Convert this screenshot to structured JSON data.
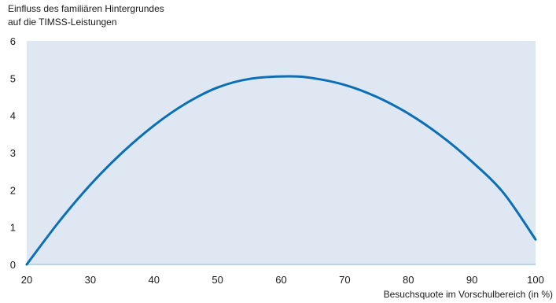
{
  "chart_data": {
    "type": "line",
    "ylabel": [
      "Einfluss des familiären Hintergrundes",
      "auf die TIMSS-Leistungen"
    ],
    "xlabel": "Besuchsquote im Vorschulbereich (in %)",
    "xlim": [
      20,
      100
    ],
    "ylim": [
      0,
      6
    ],
    "x_ticks": [
      "20",
      "30",
      "40",
      "50",
      "60",
      "70",
      "80",
      "90",
      "100"
    ],
    "y_ticks": [
      "0",
      "1",
      "2",
      "3",
      "4",
      "5",
      "6"
    ],
    "grid": false,
    "colors": {
      "line": "#0a6fb4",
      "plot_background": "#dfe7f3",
      "axis": "#7fb0d6"
    },
    "series": [
      {
        "values": [
          {
            "x": 20,
            "y": 0.0
          },
          {
            "x": 25,
            "y": 1.13
          },
          {
            "x": 30,
            "y": 2.14
          },
          {
            "x": 35,
            "y": 3.0
          },
          {
            "x": 40,
            "y": 3.73
          },
          {
            "x": 45,
            "y": 4.32
          },
          {
            "x": 50,
            "y": 4.75
          },
          {
            "x": 55,
            "y": 4.98
          },
          {
            "x": 61,
            "y": 5.05
          },
          {
            "x": 65,
            "y": 5.0
          },
          {
            "x": 70,
            "y": 4.82
          },
          {
            "x": 75,
            "y": 4.5
          },
          {
            "x": 80,
            "y": 4.05
          },
          {
            "x": 85,
            "y": 3.47
          },
          {
            "x": 90,
            "y": 2.76
          },
          {
            "x": 95,
            "y": 1.91
          },
          {
            "x": 100,
            "y": 0.67
          }
        ]
      }
    ]
  }
}
